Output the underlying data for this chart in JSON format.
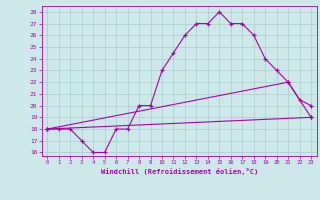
{
  "xlabel": "Windchill (Refroidissement éolien,°C)",
  "xlim": [
    -0.5,
    23.5
  ],
  "ylim": [
    15.7,
    28.5
  ],
  "xticks": [
    0,
    1,
    2,
    3,
    4,
    5,
    6,
    7,
    8,
    9,
    10,
    11,
    12,
    13,
    14,
    15,
    16,
    17,
    18,
    19,
    20,
    21,
    22,
    23
  ],
  "yticks": [
    16,
    17,
    18,
    19,
    20,
    21,
    22,
    23,
    24,
    25,
    26,
    27,
    28
  ],
  "background_color": "#cce8e8",
  "line_color": "#aa00aa",
  "grid_color": "#aacccc",
  "line1_x": [
    0,
    1,
    2,
    3,
    4,
    5,
    6,
    7,
    8,
    9,
    10,
    11,
    12,
    13,
    14,
    15,
    16,
    17,
    18,
    19,
    20,
    21,
    22,
    23
  ],
  "line1_y": [
    18,
    18,
    18,
    17,
    16,
    16,
    18,
    18,
    20,
    20,
    23,
    24.5,
    26,
    27,
    27,
    28,
    27,
    27,
    26,
    24,
    23,
    22,
    20.5,
    20
  ],
  "line2_x": [
    0,
    21,
    23
  ],
  "line2_y": [
    18,
    22,
    19
  ],
  "line3_x": [
    0,
    23
  ],
  "line3_y": [
    18,
    19
  ]
}
